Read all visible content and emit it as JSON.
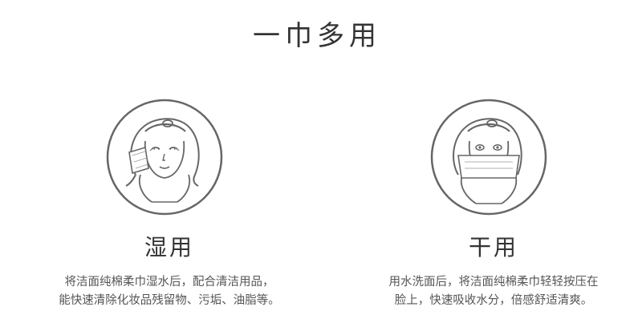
{
  "page": {
    "title": "一巾多用"
  },
  "usages": [
    {
      "title": "湿用",
      "lines": [
        "将洁面纯棉柔巾湿水后，配合清洁用品，",
        "能快速清除化妆品残留物、污垢、油脂等。"
      ],
      "illustration": "woman-wiping-face-icon"
    },
    {
      "title": "干用",
      "lines": [
        "用水洗面后，将洁面纯棉柔巾轻轻按压在",
        "脸上，快速吸收水分，倍感舒适清爽。"
      ],
      "illustration": "woman-drying-face-icon"
    }
  ],
  "colors": {
    "text": "#333333",
    "line_art": "#666666"
  }
}
